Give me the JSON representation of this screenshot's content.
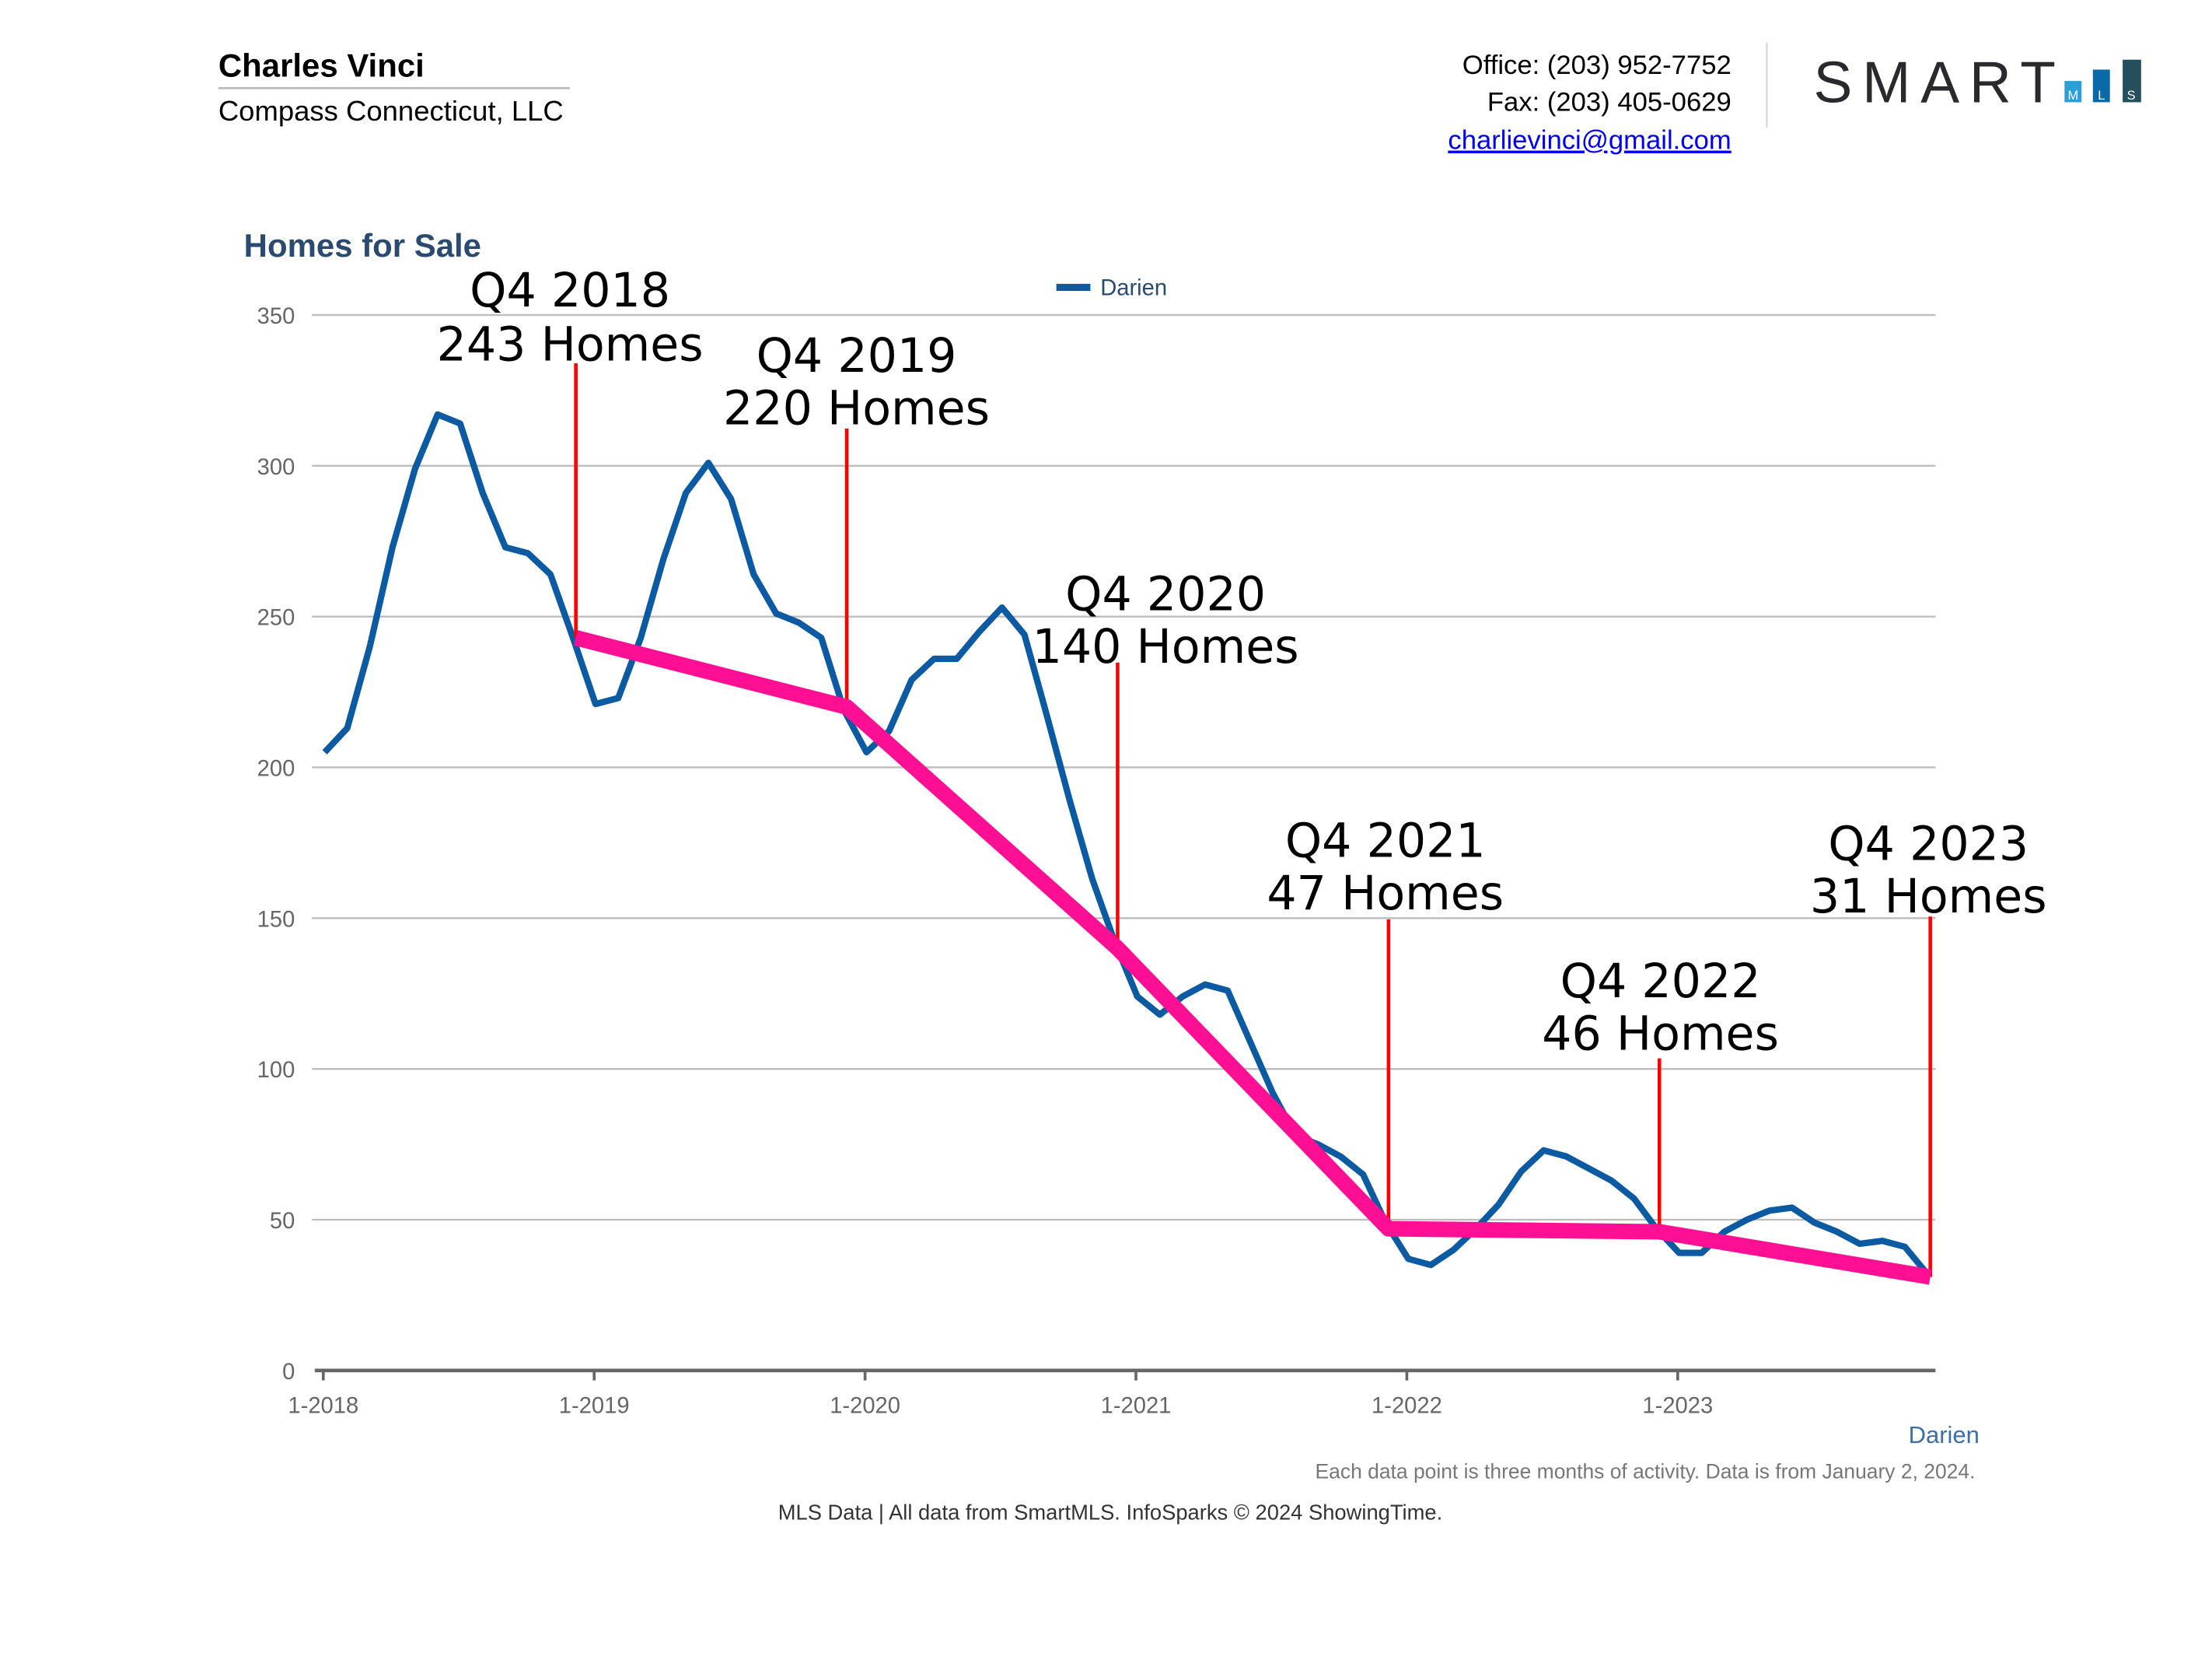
{
  "header": {
    "agent_name": "Charles Vinci",
    "company": "Compass Connecticut, LLC",
    "office": "Office: (203) 952-7752",
    "fax": "Fax: (203) 405-0629",
    "email": "charlievinci@gmail.com",
    "logo": {
      "text": "SMART",
      "sub": [
        "M",
        "L",
        "S"
      ],
      "colors": [
        "#2a9fd8",
        "#0a6aa8",
        "#24505e"
      ]
    }
  },
  "chart_data": {
    "type": "line",
    "title": "Homes for Sale",
    "legend": {
      "entries": [
        "Darien"
      ],
      "placement": "top-center"
    },
    "ylim": [
      0,
      350
    ],
    "yticks": [
      0,
      50,
      100,
      150,
      200,
      250,
      300,
      350
    ],
    "xticks": [
      "1-2018",
      "1-2019",
      "1-2020",
      "1-2021",
      "1-2022",
      "1-2023"
    ],
    "grid": true,
    "x_start": "2018-01",
    "x_interval": "monthly",
    "series": [
      {
        "name": "Darien",
        "color": "#0b5aa2",
        "values": [
          205,
          213,
          240,
          273,
          299,
          317,
          314,
          291,
          273,
          271,
          264,
          243,
          221,
          223,
          243,
          269,
          291,
          301,
          289,
          264,
          251,
          248,
          243,
          219,
          205,
          212,
          229,
          236,
          236,
          245,
          253,
          244,
          217,
          189,
          163,
          142,
          124,
          118,
          124,
          128,
          126,
          109,
          92,
          78,
          75,
          71,
          65,
          49,
          37,
          35,
          40,
          47,
          55,
          66,
          73,
          71,
          67,
          63,
          57,
          47,
          39,
          39,
          46,
          50,
          53,
          54,
          49,
          46,
          42,
          43,
          41,
          32
        ]
      }
    ],
    "trend": {
      "color": "#ff0f93",
      "points": [
        {
          "x": "2018-12",
          "y": 243
        },
        {
          "x": "2019-12",
          "y": 220
        },
        {
          "x": "2020-12",
          "y": 140
        },
        {
          "x": "2021-12",
          "y": 47
        },
        {
          "x": "2022-12",
          "y": 46
        },
        {
          "x": "2023-12",
          "y": 31
        }
      ]
    },
    "annotations": [
      {
        "quarter": "Q4 2018",
        "homes": "243 Homes"
      },
      {
        "quarter": "Q4 2019",
        "homes": "220 Homes"
      },
      {
        "quarter": "Q4 2020",
        "homes": "140 Homes"
      },
      {
        "quarter": "Q4 2021",
        "homes": "47 Homes"
      },
      {
        "quarter": "Q4 2022",
        "homes": "46 Homes"
      },
      {
        "quarter": "Q4 2023",
        "homes": "31 Homes"
      }
    ],
    "x_axis_label": "Darien",
    "note": "Each data point is three months of activity. Data is from January 2, 2024."
  },
  "footer": {
    "source": "MLS Data | All data from SmartMLS. InfoSparks © 2024 ShowingTime."
  }
}
